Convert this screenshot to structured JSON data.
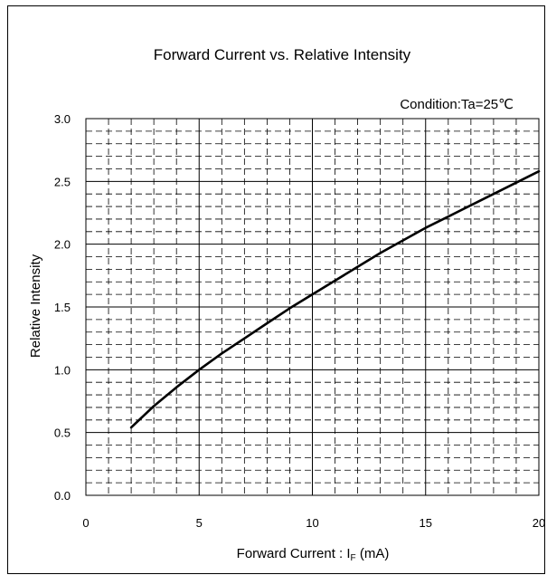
{
  "chart_data": {
    "type": "line",
    "title": "Forward Current vs. Relative Intensity",
    "annotation": "Condition:Ta=25℃",
    "xlabel": "Forward Current : I_F (mA)",
    "xlabel_parts": {
      "pre": "Forward Current : I",
      "sub": "F",
      "post": " (mA)"
    },
    "ylabel": "Relative Intensity",
    "xlim": [
      0,
      20
    ],
    "ylim": [
      0,
      3.0
    ],
    "x_ticks": [
      "0",
      "5",
      "10",
      "15",
      "20"
    ],
    "y_ticks": [
      "0.0",
      "0.5",
      "1.0",
      "1.5",
      "2.0",
      "2.5",
      "3.0"
    ],
    "grid": true,
    "line_color": "#000000",
    "series": [
      {
        "x": [
          2,
          3,
          4,
          5,
          6,
          7,
          8,
          9,
          10,
          11,
          12,
          13,
          14,
          15,
          16,
          17,
          18,
          19,
          20
        ],
        "y": [
          0.54,
          0.71,
          0.86,
          1.0,
          1.13,
          1.25,
          1.37,
          1.49,
          1.6,
          1.71,
          1.82,
          1.93,
          2.03,
          2.13,
          2.22,
          2.31,
          2.4,
          2.49,
          2.58
        ]
      }
    ]
  }
}
